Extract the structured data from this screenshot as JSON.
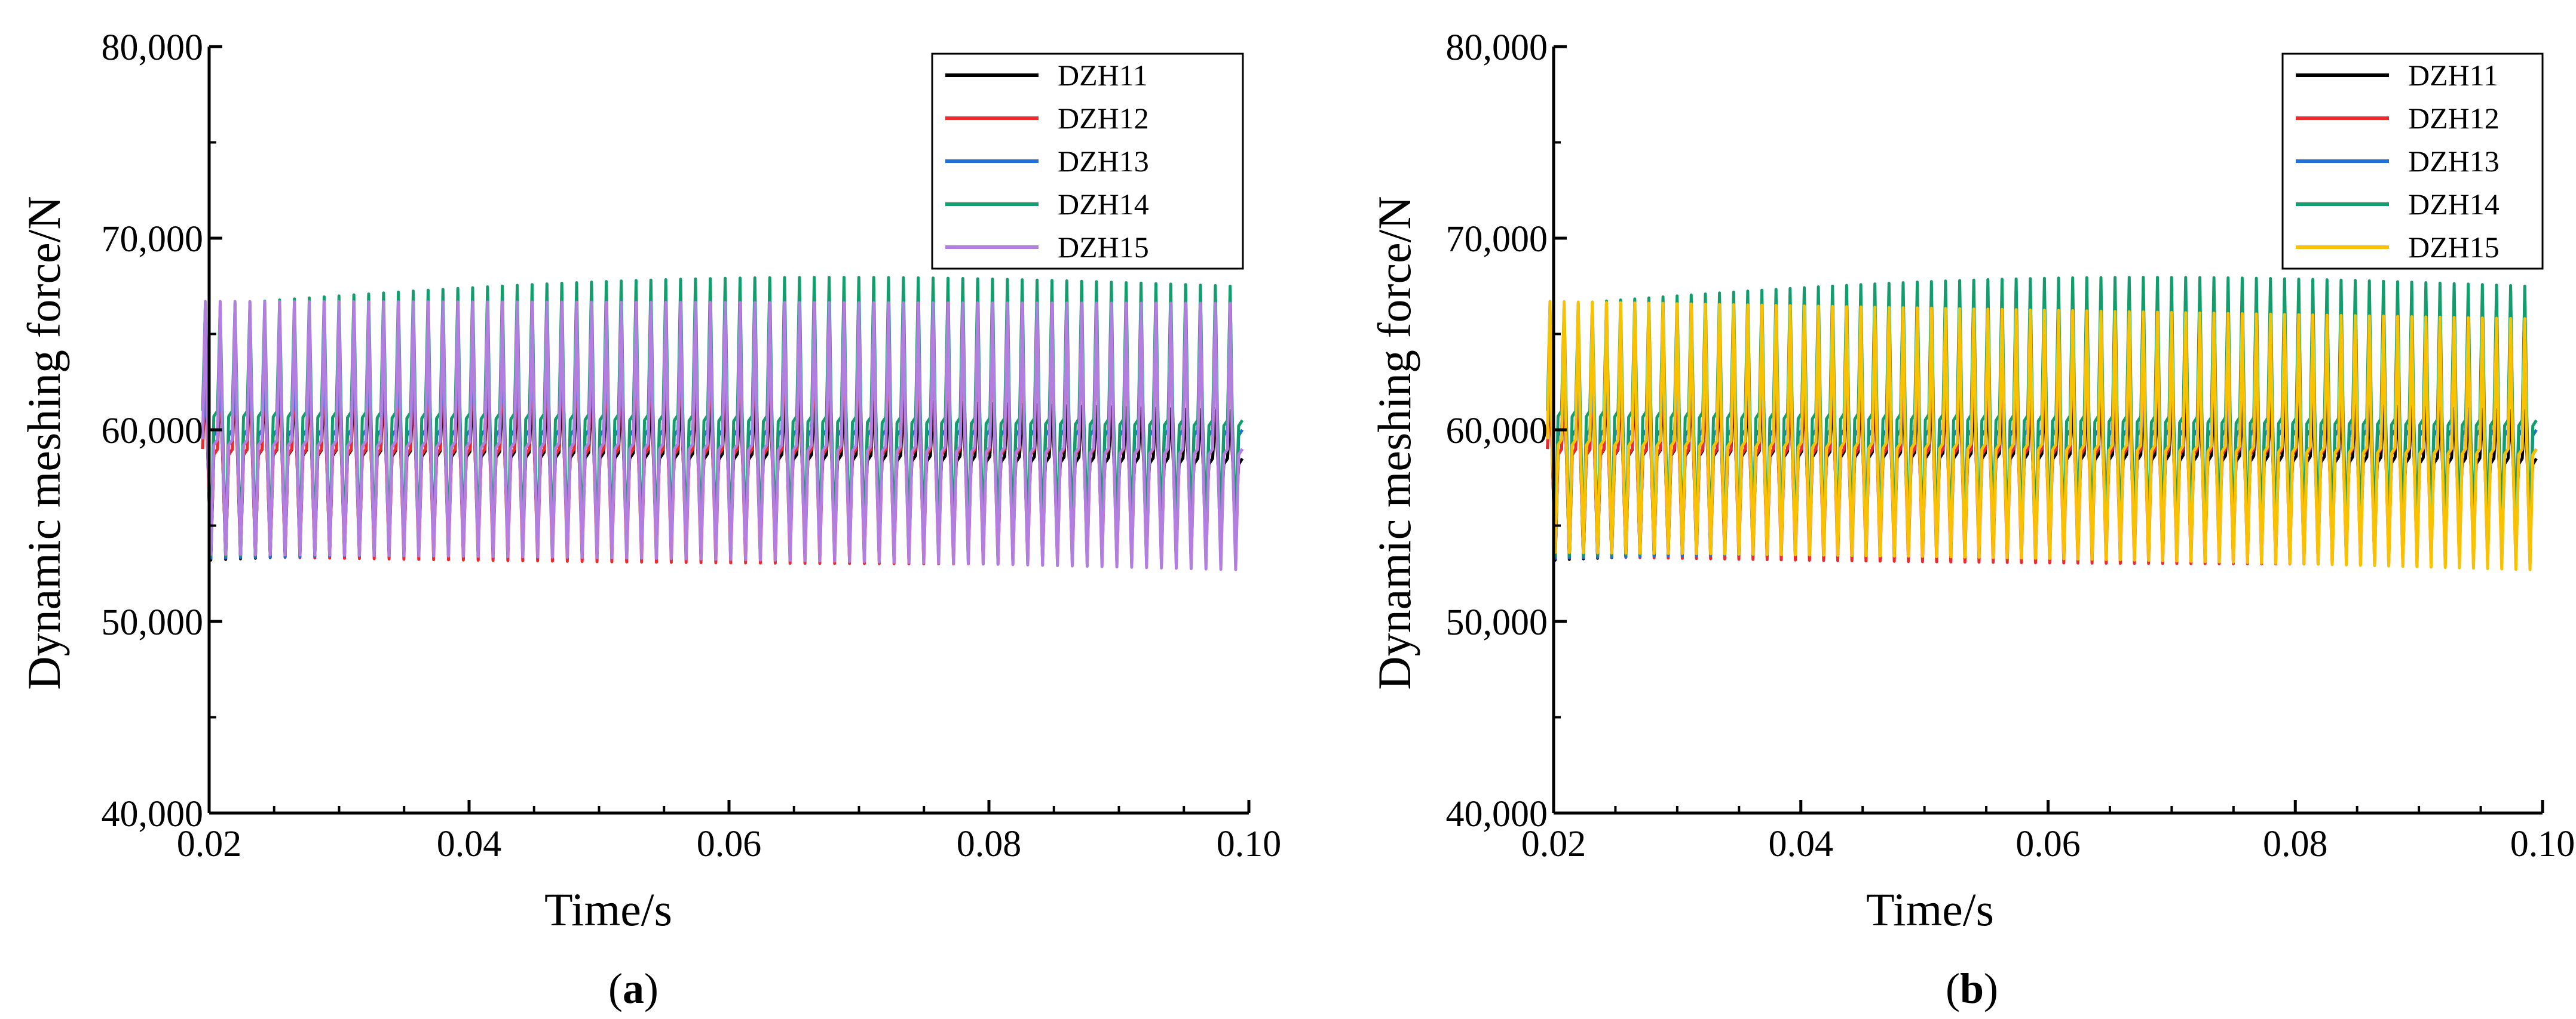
{
  "chart_data": [
    {
      "id": "a",
      "type": "line",
      "caption_letter": "a",
      "xlabel": "Time/s",
      "ylabel": "Dynamic meshing force/N",
      "xlim": [
        0.02,
        0.1
      ],
      "ylim": [
        40000,
        80000
      ],
      "xticks": [
        0.02,
        0.04,
        0.06,
        0.08,
        0.1
      ],
      "xtick_labels": [
        "0.02",
        "0.04",
        "0.06",
        "0.08",
        "0.10"
      ],
      "yticks": [
        40000,
        50000,
        60000,
        70000,
        80000
      ],
      "ytick_labels": [
        "40,000",
        "50,000",
        "60,000",
        "70,000",
        "80,000"
      ],
      "legend_position": "top-right",
      "cycles": 70,
      "series": [
        {
          "name": "DZH11",
          "color": "#000000",
          "top": [
            62600,
            61000
          ],
          "bottom": [
            53200,
            55000
          ],
          "mid": [
            59000,
            58500
          ]
        },
        {
          "name": "DZH12",
          "color": "#ee2a2f",
          "top": [
            63500,
            67000
          ],
          "bottom": [
            53400,
            53000
          ],
          "mid": [
            59000,
            59000
          ]
        },
        {
          "name": "DZH13",
          "color": "#1f6fd6",
          "top": [
            62500,
            67300
          ],
          "bottom": [
            53300,
            53800
          ],
          "mid": [
            60000,
            60000
          ]
        },
        {
          "name": "DZH14",
          "color": "#139d6c",
          "top": [
            66500,
            67500
          ],
          "bottom": [
            53400,
            55000
          ],
          "mid": [
            61000,
            60500
          ]
        },
        {
          "name": "DZH15",
          "color": "#b27ee0",
          "top": [
            66700,
            66600
          ],
          "bottom": [
            53500,
            52700
          ],
          "mid": [
            59500,
            59000
          ]
        }
      ]
    },
    {
      "id": "b",
      "type": "line",
      "caption_letter": "b",
      "xlabel": "Time/s",
      "ylabel": "Dynamic meshing force/N",
      "xlim": [
        0.02,
        0.1
      ],
      "ylim": [
        40000,
        80000
      ],
      "xticks": [
        0.02,
        0.04,
        0.06,
        0.08,
        0.1
      ],
      "xtick_labels": [
        "0.02",
        "0.04",
        "0.06",
        "0.08",
        "0.10"
      ],
      "yticks": [
        40000,
        50000,
        60000,
        70000,
        80000
      ],
      "ytick_labels": [
        "40,000",
        "50,000",
        "60,000",
        "70,000",
        "80,000"
      ],
      "legend_position": "top-right",
      "cycles": 70,
      "series": [
        {
          "name": "DZH11",
          "color": "#000000",
          "top": [
            62600,
            61000
          ],
          "bottom": [
            53200,
            55000
          ],
          "mid": [
            59000,
            58500
          ]
        },
        {
          "name": "DZH12",
          "color": "#ee2a2f",
          "top": [
            63500,
            67000
          ],
          "bottom": [
            53400,
            53000
          ],
          "mid": [
            59000,
            59000
          ]
        },
        {
          "name": "DZH13",
          "color": "#1f6fd6",
          "top": [
            62500,
            67300
          ],
          "bottom": [
            53300,
            53800
          ],
          "mid": [
            60000,
            60000
          ]
        },
        {
          "name": "DZH14",
          "color": "#139d6c",
          "top": [
            66500,
            67500
          ],
          "bottom": [
            53400,
            55000
          ],
          "mid": [
            61000,
            60500
          ]
        },
        {
          "name": "DZH15",
          "color": "#f8c200",
          "top": [
            66700,
            65800
          ],
          "bottom": [
            53600,
            52700
          ],
          "mid": [
            59500,
            59000
          ]
        }
      ]
    }
  ]
}
